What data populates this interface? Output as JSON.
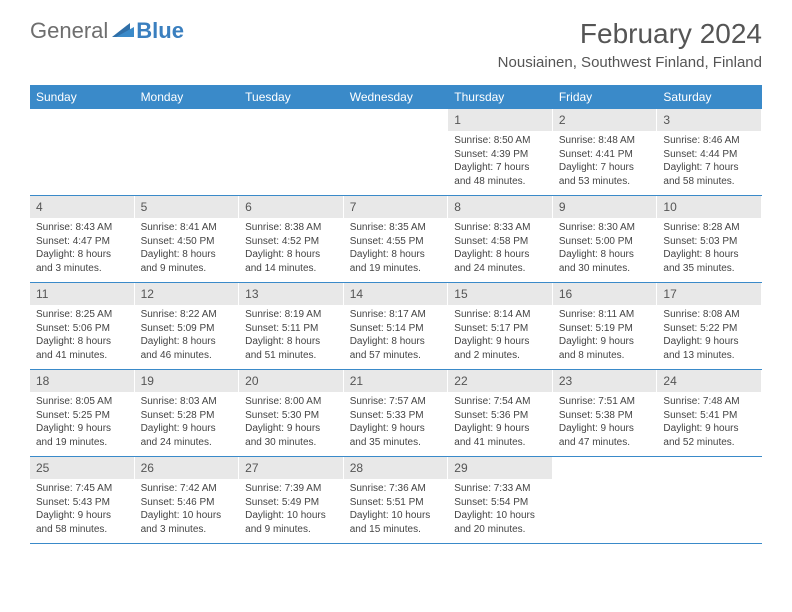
{
  "brand": {
    "part1": "General",
    "part2": "Blue"
  },
  "title": "February 2024",
  "location": "Nousiainen, Southwest Finland, Finland",
  "colors": {
    "header_bar": "#3a8ac9",
    "daynum_bg": "#e8e8e8",
    "rule": "#3a8ac9",
    "logo_gray": "#6e6e6e",
    "logo_blue": "#3a7fbf"
  },
  "weekdays": [
    "Sunday",
    "Monday",
    "Tuesday",
    "Wednesday",
    "Thursday",
    "Friday",
    "Saturday"
  ],
  "weeks": [
    [
      null,
      null,
      null,
      null,
      {
        "n": "1",
        "sr": "Sunrise: 8:50 AM",
        "ss": "Sunset: 4:39 PM",
        "d1": "Daylight: 7 hours",
        "d2": "and 48 minutes."
      },
      {
        "n": "2",
        "sr": "Sunrise: 8:48 AM",
        "ss": "Sunset: 4:41 PM",
        "d1": "Daylight: 7 hours",
        "d2": "and 53 minutes."
      },
      {
        "n": "3",
        "sr": "Sunrise: 8:46 AM",
        "ss": "Sunset: 4:44 PM",
        "d1": "Daylight: 7 hours",
        "d2": "and 58 minutes."
      }
    ],
    [
      {
        "n": "4",
        "sr": "Sunrise: 8:43 AM",
        "ss": "Sunset: 4:47 PM",
        "d1": "Daylight: 8 hours",
        "d2": "and 3 minutes."
      },
      {
        "n": "5",
        "sr": "Sunrise: 8:41 AM",
        "ss": "Sunset: 4:50 PM",
        "d1": "Daylight: 8 hours",
        "d2": "and 9 minutes."
      },
      {
        "n": "6",
        "sr": "Sunrise: 8:38 AM",
        "ss": "Sunset: 4:52 PM",
        "d1": "Daylight: 8 hours",
        "d2": "and 14 minutes."
      },
      {
        "n": "7",
        "sr": "Sunrise: 8:35 AM",
        "ss": "Sunset: 4:55 PM",
        "d1": "Daylight: 8 hours",
        "d2": "and 19 minutes."
      },
      {
        "n": "8",
        "sr": "Sunrise: 8:33 AM",
        "ss": "Sunset: 4:58 PM",
        "d1": "Daylight: 8 hours",
        "d2": "and 24 minutes."
      },
      {
        "n": "9",
        "sr": "Sunrise: 8:30 AM",
        "ss": "Sunset: 5:00 PM",
        "d1": "Daylight: 8 hours",
        "d2": "and 30 minutes."
      },
      {
        "n": "10",
        "sr": "Sunrise: 8:28 AM",
        "ss": "Sunset: 5:03 PM",
        "d1": "Daylight: 8 hours",
        "d2": "and 35 minutes."
      }
    ],
    [
      {
        "n": "11",
        "sr": "Sunrise: 8:25 AM",
        "ss": "Sunset: 5:06 PM",
        "d1": "Daylight: 8 hours",
        "d2": "and 41 minutes."
      },
      {
        "n": "12",
        "sr": "Sunrise: 8:22 AM",
        "ss": "Sunset: 5:09 PM",
        "d1": "Daylight: 8 hours",
        "d2": "and 46 minutes."
      },
      {
        "n": "13",
        "sr": "Sunrise: 8:19 AM",
        "ss": "Sunset: 5:11 PM",
        "d1": "Daylight: 8 hours",
        "d2": "and 51 minutes."
      },
      {
        "n": "14",
        "sr": "Sunrise: 8:17 AM",
        "ss": "Sunset: 5:14 PM",
        "d1": "Daylight: 8 hours",
        "d2": "and 57 minutes."
      },
      {
        "n": "15",
        "sr": "Sunrise: 8:14 AM",
        "ss": "Sunset: 5:17 PM",
        "d1": "Daylight: 9 hours",
        "d2": "and 2 minutes."
      },
      {
        "n": "16",
        "sr": "Sunrise: 8:11 AM",
        "ss": "Sunset: 5:19 PM",
        "d1": "Daylight: 9 hours",
        "d2": "and 8 minutes."
      },
      {
        "n": "17",
        "sr": "Sunrise: 8:08 AM",
        "ss": "Sunset: 5:22 PM",
        "d1": "Daylight: 9 hours",
        "d2": "and 13 minutes."
      }
    ],
    [
      {
        "n": "18",
        "sr": "Sunrise: 8:05 AM",
        "ss": "Sunset: 5:25 PM",
        "d1": "Daylight: 9 hours",
        "d2": "and 19 minutes."
      },
      {
        "n": "19",
        "sr": "Sunrise: 8:03 AM",
        "ss": "Sunset: 5:28 PM",
        "d1": "Daylight: 9 hours",
        "d2": "and 24 minutes."
      },
      {
        "n": "20",
        "sr": "Sunrise: 8:00 AM",
        "ss": "Sunset: 5:30 PM",
        "d1": "Daylight: 9 hours",
        "d2": "and 30 minutes."
      },
      {
        "n": "21",
        "sr": "Sunrise: 7:57 AM",
        "ss": "Sunset: 5:33 PM",
        "d1": "Daylight: 9 hours",
        "d2": "and 35 minutes."
      },
      {
        "n": "22",
        "sr": "Sunrise: 7:54 AM",
        "ss": "Sunset: 5:36 PM",
        "d1": "Daylight: 9 hours",
        "d2": "and 41 minutes."
      },
      {
        "n": "23",
        "sr": "Sunrise: 7:51 AM",
        "ss": "Sunset: 5:38 PM",
        "d1": "Daylight: 9 hours",
        "d2": "and 47 minutes."
      },
      {
        "n": "24",
        "sr": "Sunrise: 7:48 AM",
        "ss": "Sunset: 5:41 PM",
        "d1": "Daylight: 9 hours",
        "d2": "and 52 minutes."
      }
    ],
    [
      {
        "n": "25",
        "sr": "Sunrise: 7:45 AM",
        "ss": "Sunset: 5:43 PM",
        "d1": "Daylight: 9 hours",
        "d2": "and 58 minutes."
      },
      {
        "n": "26",
        "sr": "Sunrise: 7:42 AM",
        "ss": "Sunset: 5:46 PM",
        "d1": "Daylight: 10 hours",
        "d2": "and 3 minutes."
      },
      {
        "n": "27",
        "sr": "Sunrise: 7:39 AM",
        "ss": "Sunset: 5:49 PM",
        "d1": "Daylight: 10 hours",
        "d2": "and 9 minutes."
      },
      {
        "n": "28",
        "sr": "Sunrise: 7:36 AM",
        "ss": "Sunset: 5:51 PM",
        "d1": "Daylight: 10 hours",
        "d2": "and 15 minutes."
      },
      {
        "n": "29",
        "sr": "Sunrise: 7:33 AM",
        "ss": "Sunset: 5:54 PM",
        "d1": "Daylight: 10 hours",
        "d2": "and 20 minutes."
      },
      null,
      null
    ]
  ]
}
